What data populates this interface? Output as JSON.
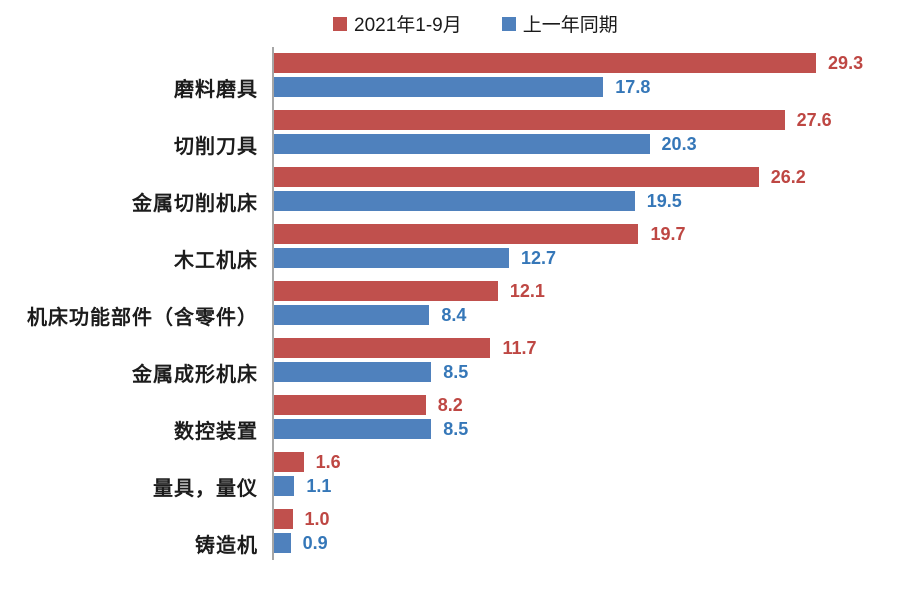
{
  "chart_data": {
    "type": "bar",
    "orientation": "horizontal",
    "title": "",
    "categories": [
      "磨料磨具",
      "切削刀具",
      "金属切削机床",
      "木工机床",
      "机床功能部件（含零件）",
      "金属成形机床",
      "数控装置",
      "量具，量仪",
      "铸造机"
    ],
    "series": [
      {
        "name": "2021年1-9月",
        "bar_color": "#c0504d",
        "label_color": "#be4743",
        "values": [
          29.3,
          27.6,
          26.2,
          19.7,
          12.1,
          11.7,
          8.2,
          1.6,
          1.0
        ]
      },
      {
        "name": "上一年同期",
        "bar_color": "#4f81bd",
        "label_color": "#3577b8",
        "values": [
          17.8,
          20.3,
          19.5,
          12.7,
          8.4,
          8.5,
          8.5,
          1.1,
          0.9
        ]
      }
    ],
    "value_labels": true,
    "value_decimals": 1,
    "xlim": [
      0,
      33
    ],
    "grid": false,
    "legend_position": "top",
    "axis_color": "#a6a6a6",
    "text_color": "#1a1a1a",
    "background_color": "#ffffff"
  }
}
